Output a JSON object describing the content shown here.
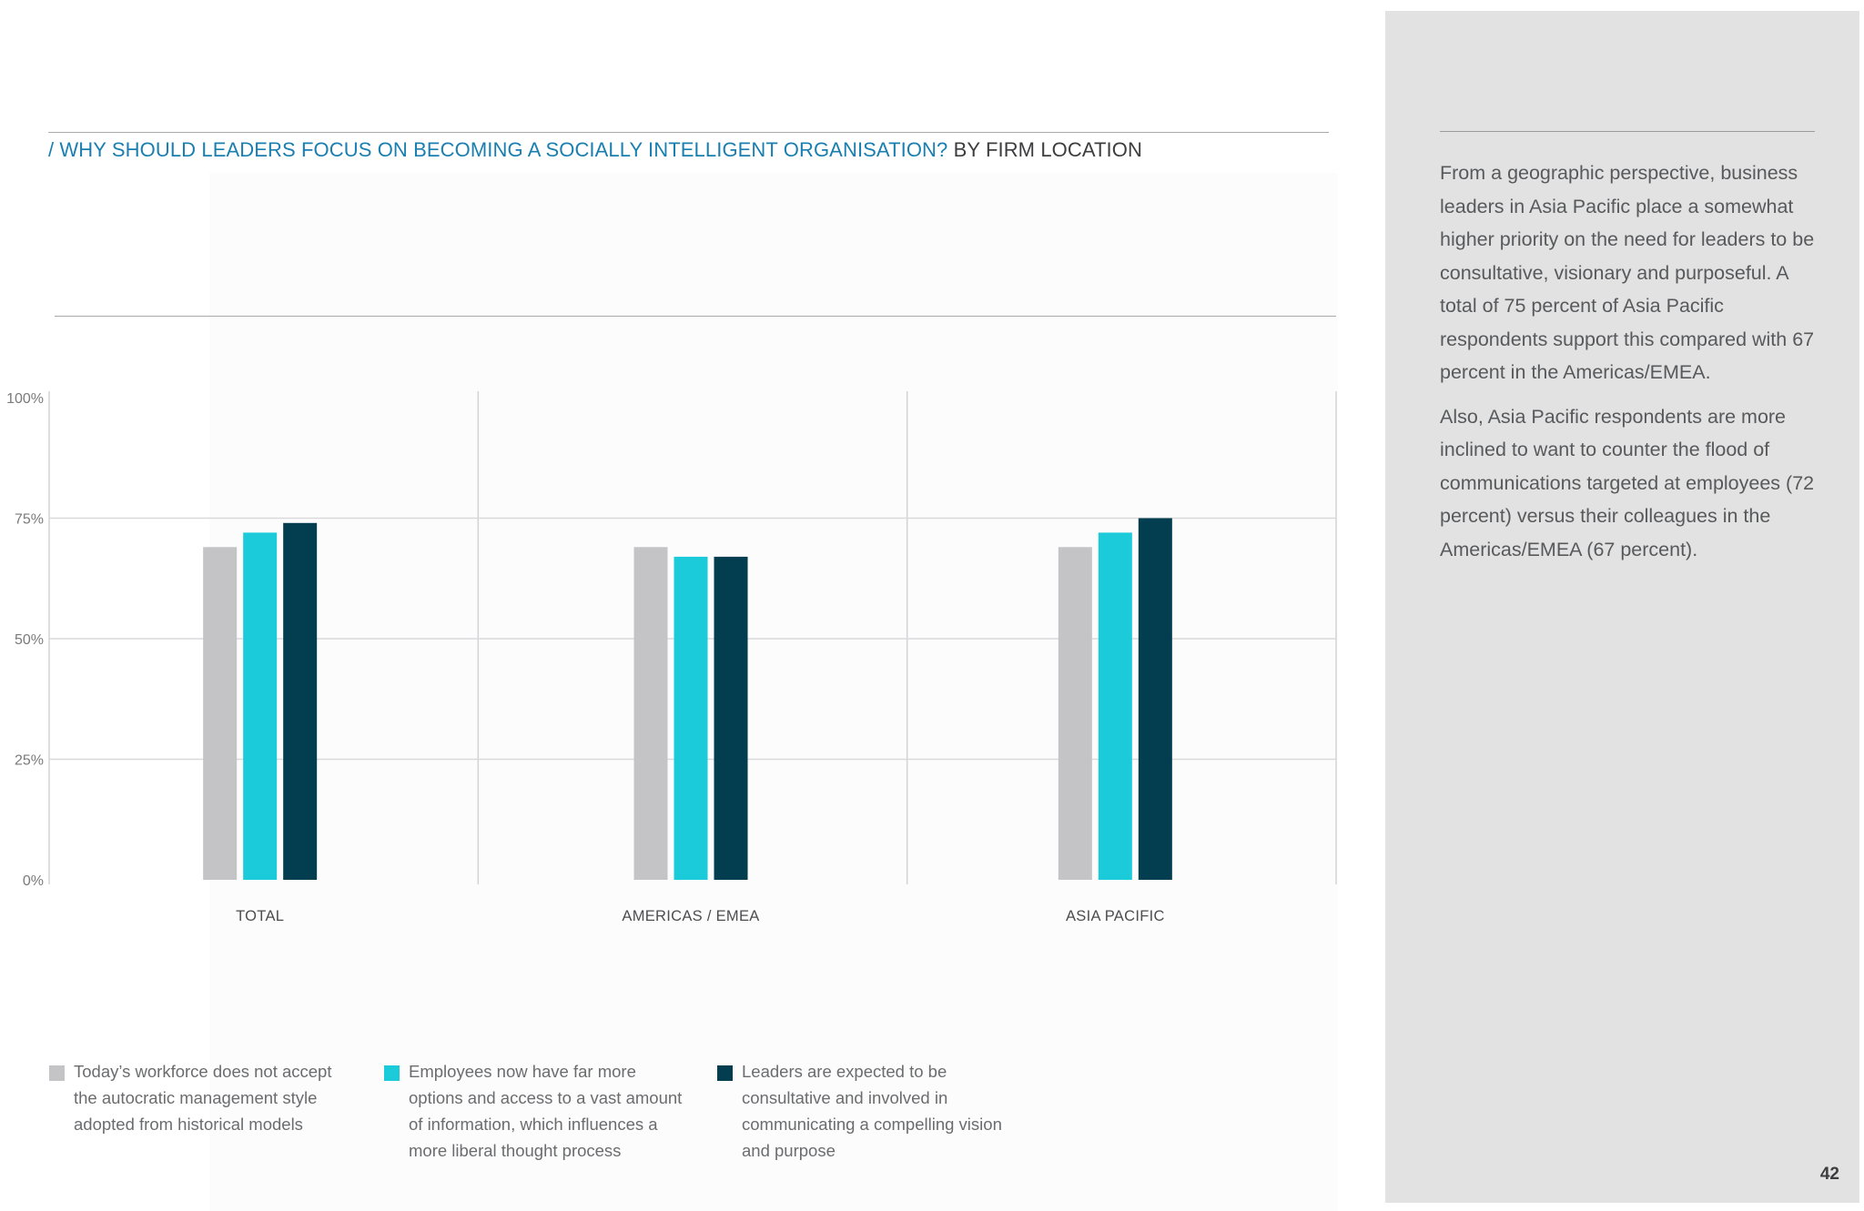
{
  "header": {
    "title_accent": "/ WHY SHOULD LEADERS FOCUS ON BECOMING A SOCIALLY INTELLIGENT ORGANISATION?",
    "title_rest": "BY FIRM LOCATION"
  },
  "sidebar": {
    "paragraphs": [
      "From a geographic perspective, business leaders in Asia Pacific place a somewhat higher priority on the need for leaders to be consultative, visionary and purposeful. A total of 75 percent of Asia Pacific respondents support this compared with 67 percent in the Americas/EMEA.",
      "Also, Asia Pacific respondents are more inclined to want to counter the flood of communications targeted at employees (72 percent) versus their colleagues in the Americas/EMEA (67 percent)."
    ]
  },
  "page_number": "42",
  "chart_data": {
    "type": "bar",
    "categories": [
      "TOTAL",
      "AMERICAS / EMEA",
      "ASIA PACIFIC"
    ],
    "y_ticks": [
      "100%",
      "75%",
      "50%",
      "25%",
      "0%"
    ],
    "ylim": [
      0,
      100
    ],
    "grid": true,
    "legend_position": "bottom",
    "series": [
      {
        "name": "Today’s workforce does not accept the autocratic management style adopted from historical models",
        "color": "#c4c3c6",
        "values": [
          69,
          69,
          69
        ]
      },
      {
        "name": "Employees now have far more options and access to a vast amount of information, which influences a more liberal thought process",
        "color": "#1ccbda",
        "values": [
          72,
          67,
          72
        ]
      },
      {
        "name": "Leaders are expected to be consultative and involved in communicating a compelling vision and purpose",
        "color": "#023e4f",
        "values": [
          74,
          67,
          75
        ]
      }
    ]
  }
}
